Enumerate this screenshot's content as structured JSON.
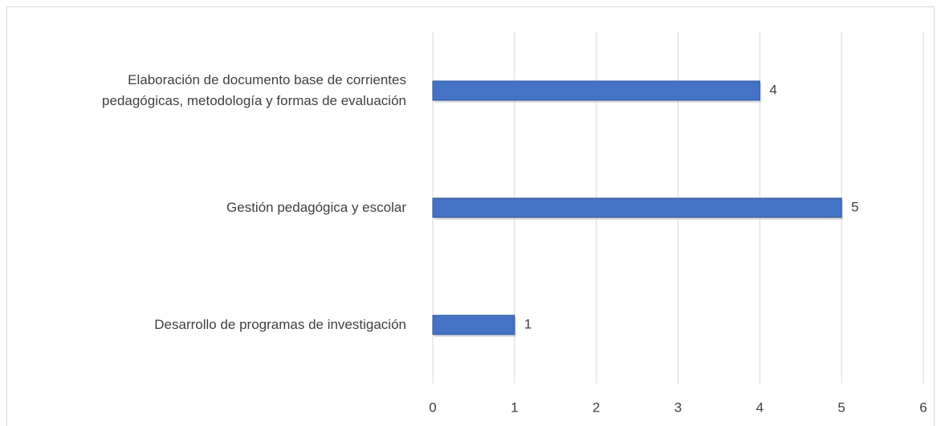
{
  "chart_data": {
    "type": "bar",
    "orientation": "horizontal",
    "categories": [
      "Elaboración de documento base de corrientes\npedagógicas, metodología y formas de evaluación",
      "Gestión pedagógica y escolar",
      "Desarrollo de programas de investigación"
    ],
    "values": [
      4,
      5,
      1
    ],
    "color": "#4472c4",
    "xlim": [
      0,
      6
    ],
    "xticks": [
      0,
      1,
      2,
      3,
      4,
      5,
      6
    ],
    "grid": true
  }
}
